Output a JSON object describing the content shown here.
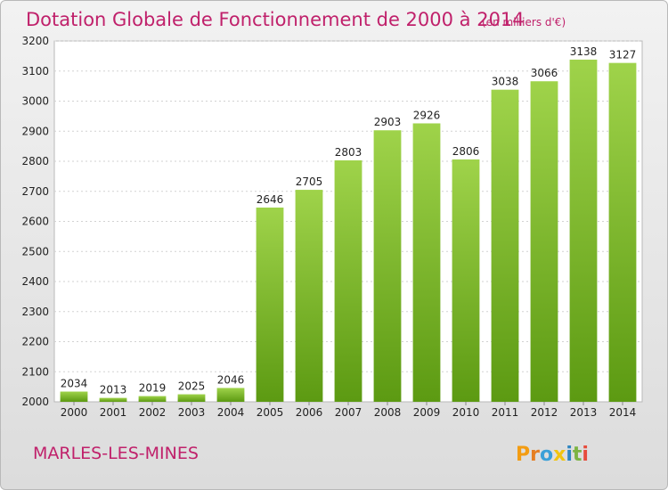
{
  "chart_data": {
    "type": "bar",
    "title": "Dotation Globale de Fonctionnement de 2000 à 2014",
    "subtitle": "(en milliers d'€)",
    "categories": [
      "2000",
      "2001",
      "2002",
      "2003",
      "2004",
      "2005",
      "2006",
      "2007",
      "2008",
      "2009",
      "2010",
      "2011",
      "2012",
      "2013",
      "2014"
    ],
    "values": [
      2034,
      2013,
      2019,
      2025,
      2046,
      2646,
      2705,
      2803,
      2903,
      2926,
      2806,
      3038,
      3066,
      3138,
      3127
    ],
    "yticks": [
      2000,
      2100,
      2200,
      2300,
      2400,
      2500,
      2600,
      2700,
      2800,
      2900,
      3000,
      3100,
      3200
    ],
    "ylim": [
      2000,
      3200
    ],
    "xlabel": "",
    "ylabel": "",
    "grid": true,
    "bar_color_top": "#9fd34a",
    "bar_color_bottom": "#5c9a12"
  },
  "footer": {
    "city": "MARLES-LES-MINES",
    "logo": {
      "text": "Proxiti",
      "letters": [
        "P",
        "r",
        "o",
        "x",
        "i",
        "t",
        "i"
      ],
      "colors": [
        "#f39c12",
        "#e67e22",
        "#3aa0d8",
        "#f1c40f",
        "#2e86c1",
        "#7cb342",
        "#e74c3c"
      ]
    }
  }
}
